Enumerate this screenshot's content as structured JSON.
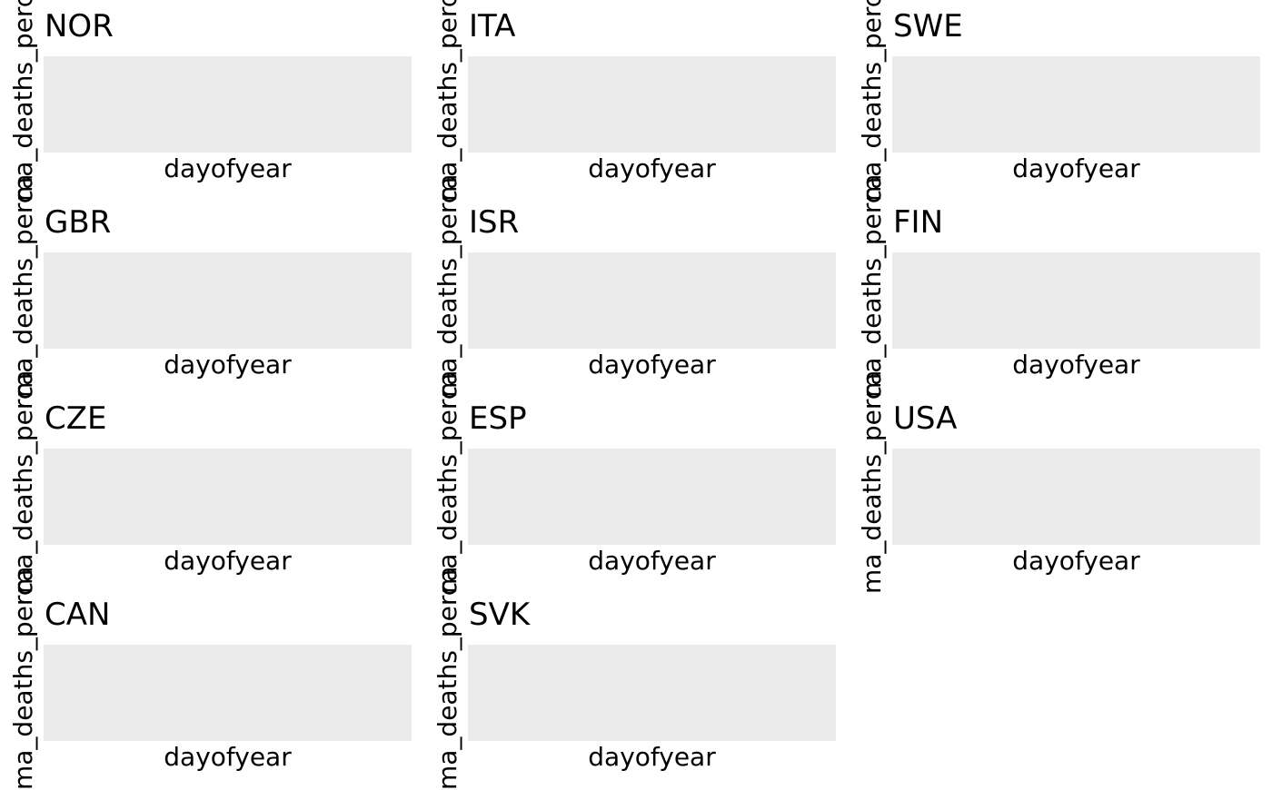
{
  "chart_data": {
    "type": "line",
    "layout": "facet-grid",
    "xlabel": "dayofyear",
    "ylabel": "ma_deaths_perca",
    "grid": false,
    "legend": "none",
    "panel_background": "#ebebeb",
    "facets": [
      {
        "title": "NOR",
        "series": []
      },
      {
        "title": "ITA",
        "series": []
      },
      {
        "title": "SWE",
        "series": []
      },
      {
        "title": "GBR",
        "series": []
      },
      {
        "title": "ISR",
        "series": []
      },
      {
        "title": "FIN",
        "series": []
      },
      {
        "title": "CZE",
        "series": []
      },
      {
        "title": "ESP",
        "series": []
      },
      {
        "title": "USA",
        "series": []
      },
      {
        "title": "CAN",
        "series": []
      },
      {
        "title": "SVK",
        "series": []
      }
    ]
  }
}
